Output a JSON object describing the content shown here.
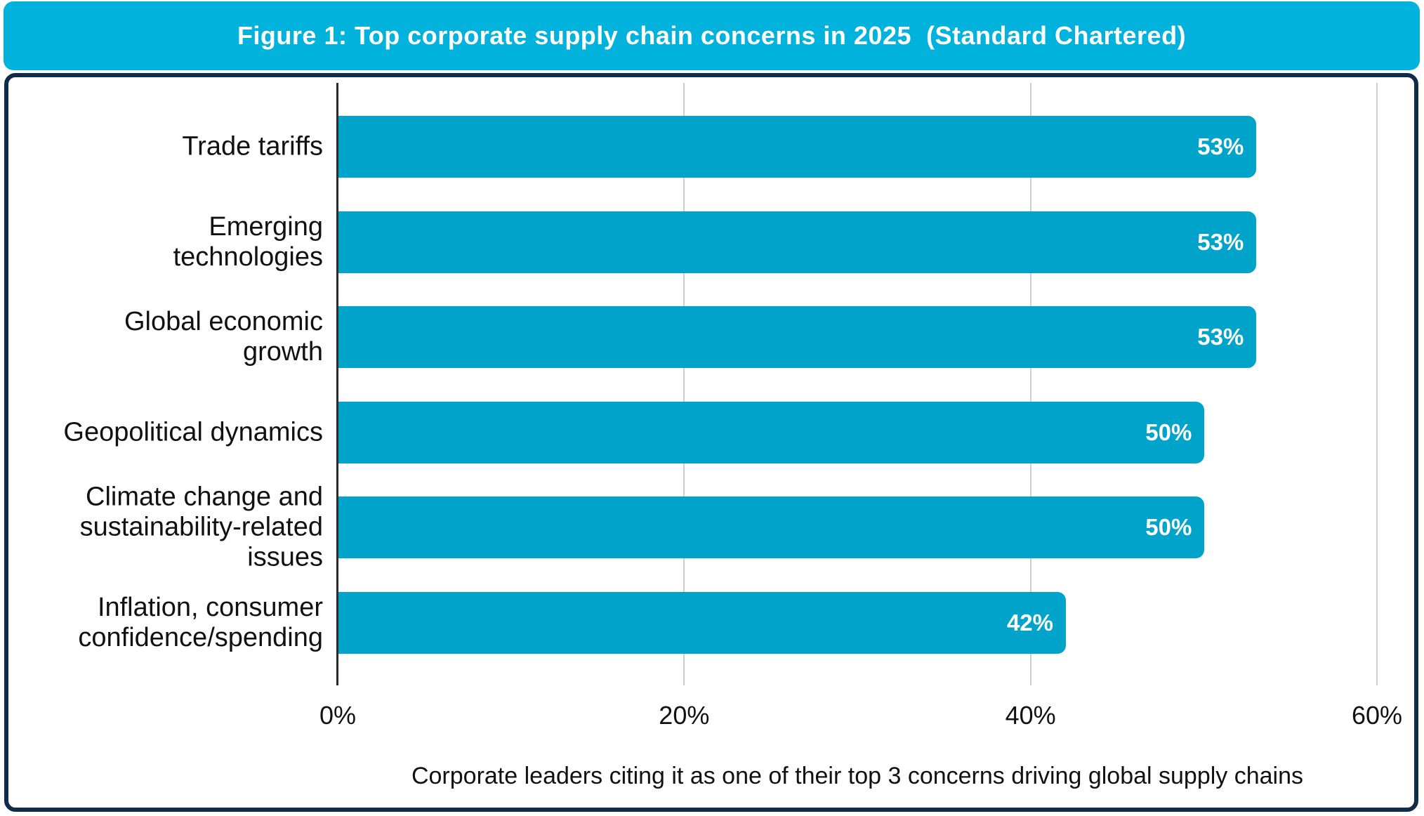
{
  "header": {
    "title": "Figure 1: Top corporate supply chain concerns in 2025  (Standard Chartered)"
  },
  "theme": {
    "header_bg": "#00b2dc",
    "bar_color": "#00a3ca",
    "card_border": "#0f2c49",
    "gridline_color": "#cfcfcf",
    "axis_color": "#2b2b2b",
    "value_label_color": "#ffffff",
    "text_color": "#111111"
  },
  "chart_data": {
    "type": "bar",
    "orientation": "horizontal",
    "title": "Figure 1: Top corporate supply chain concerns in 2025 (Standard Chartered)",
    "categories": [
      "Trade tariffs",
      "Emerging technologies",
      "Global economic growth",
      "Geopolitical dynamics",
      "Climate change and sustainability-related issues",
      "Inflation, consumer confidence/spending"
    ],
    "category_lines": [
      [
        "Trade tariffs"
      ],
      [
        "Emerging",
        "technologies"
      ],
      [
        "Global economic",
        "growth"
      ],
      [
        "Geopolitical dynamics"
      ],
      [
        "Climate change and",
        "sustainability-related",
        "issues"
      ],
      [
        "Inflation, consumer",
        "confidence/spending"
      ]
    ],
    "values": [
      53,
      53,
      53,
      50,
      50,
      42
    ],
    "value_labels": [
      "53%",
      "53%",
      "53%",
      "50%",
      "50%",
      "42%"
    ],
    "x_tick_values": [
      0,
      20,
      40,
      60
    ],
    "x_ticks": [
      "0%",
      "20%",
      "40%",
      "60%"
    ],
    "xlim": [
      0,
      60
    ],
    "grid": "vertical-gridlines-at-ticks",
    "legend": "none",
    "xlabel": "",
    "ylabel": "",
    "caption": "Corporate leaders citing it as one of their top 3 concerns driving global supply chains"
  }
}
